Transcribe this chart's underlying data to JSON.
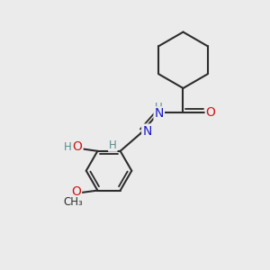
{
  "background_color": "#ebebeb",
  "bond_color": "#2d2d2d",
  "bond_width": 1.5,
  "atom_colors": {
    "C": "#2d2d2d",
    "N": "#1a1acc",
    "O": "#cc1a1a",
    "H": "#5a8a8a"
  },
  "figsize": [
    3.0,
    3.0
  ],
  "dpi": 100
}
